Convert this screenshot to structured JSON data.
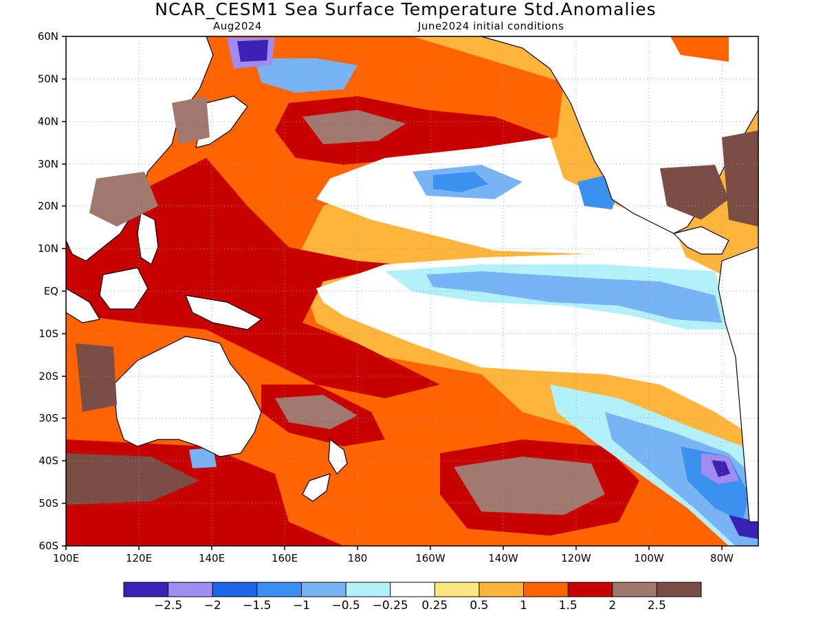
{
  "title": "NCAR_CESM1  Sea  Surface  Temperature  Std.Anomalies",
  "subtitle_left": "Aug2024",
  "subtitle_right": "June2024  initial  conditions",
  "map": {
    "lat_labels": [
      "60N",
      "50N",
      "40N",
      "30N",
      "20N",
      "10N",
      "EQ",
      "10S",
      "20S",
      "30S",
      "40S",
      "50S",
      "60S"
    ],
    "lon_labels": [
      "100E",
      "120E",
      "140E",
      "160E",
      "180",
      "160W",
      "140W",
      "120W",
      "100W",
      "80W"
    ],
    "extent": {
      "lon_min": 100,
      "lon_max": 290,
      "lat_min": -60,
      "lat_max": 60
    }
  },
  "colorbar": {
    "colors": [
      "#3c22b4",
      "#a08cf0",
      "#1e64e6",
      "#3c91f0",
      "#78b4f5",
      "#b4f0fa",
      "#ffffff",
      "#ffe680",
      "#ffb43c",
      "#ff6400",
      "#c80000",
      "#a0786e",
      "#7a4e45"
    ],
    "labels": [
      "−2.5",
      "−2",
      "−1.5",
      "−1",
      "−0.5",
      "−0.25",
      "0.25",
      "0.5",
      "1",
      "1.5",
      "2",
      "2.5"
    ]
  },
  "palette": {
    "land": "#ffffff",
    "coast": "#000000"
  }
}
